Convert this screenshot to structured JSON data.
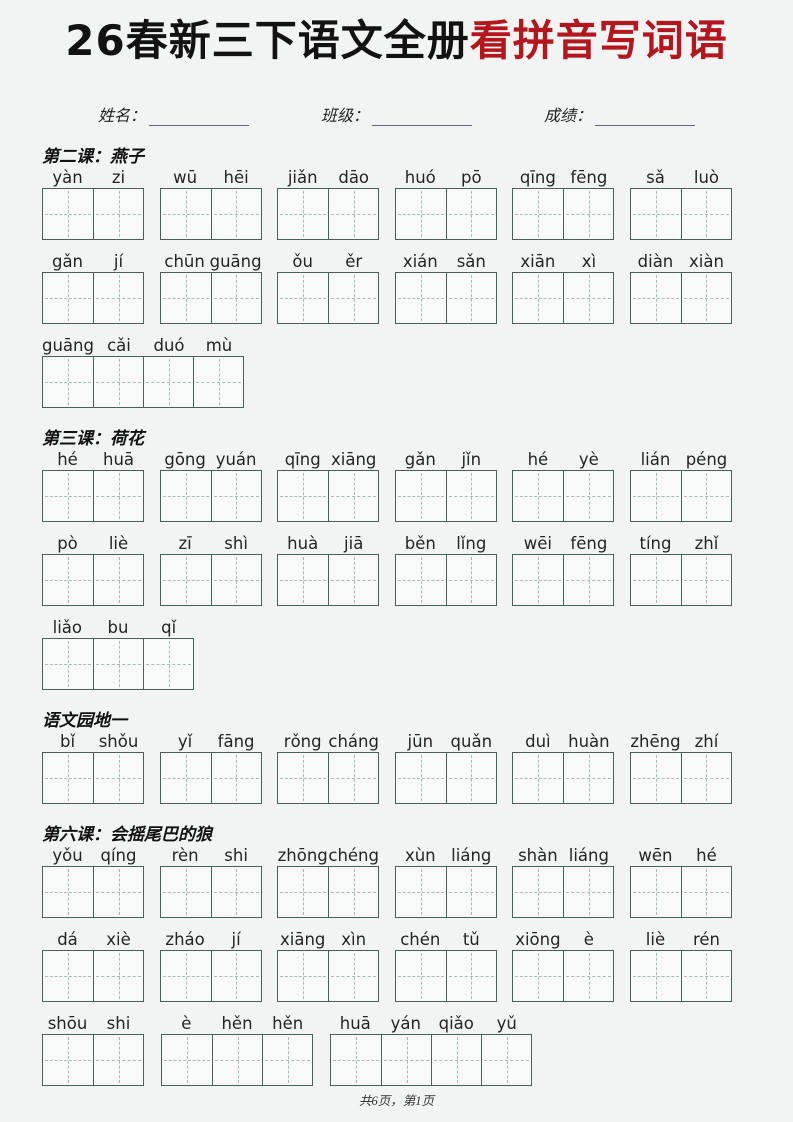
{
  "header": {
    "title_black": "26春新三下语文全册",
    "title_red": "看拼音写词语"
  },
  "student_fields": [
    {
      "label": "姓名："
    },
    {
      "label": "班级："
    },
    {
      "label": "成绩："
    }
  ],
  "sections": [
    {
      "heading": "第二课：燕子",
      "rows": [
        {
          "groups": [
            [
              "yàn",
              "zi"
            ],
            [
              "wū",
              "hēi"
            ],
            [
              "jiǎn",
              "dāo"
            ],
            [
              "huó",
              "pō"
            ],
            [
              "qīng",
              "fēng"
            ],
            [
              "sǎ",
              "luò"
            ]
          ]
        },
        {
          "groups": [
            [
              "gǎn",
              "jí"
            ],
            [
              "chūn",
              "guāng"
            ],
            [
              "ǒu",
              "ěr"
            ],
            [
              "xián",
              "sǎn"
            ],
            [
              "xiān",
              "xì"
            ],
            [
              "diàn",
              "xiàn"
            ]
          ]
        },
        {
          "groups": [
            [
              "guāng",
              "cǎi",
              "duó",
              "mù"
            ]
          ]
        }
      ]
    },
    {
      "heading": "第三课：荷花",
      "rows": [
        {
          "groups": [
            [
              "hé",
              "huā"
            ],
            [
              "gōng",
              "yuán"
            ],
            [
              "qīng",
              "xiāng"
            ],
            [
              "gǎn",
              "jǐn"
            ],
            [
              "hé",
              "yè"
            ],
            [
              "lián",
              "péng"
            ]
          ]
        },
        {
          "groups": [
            [
              "pò",
              "liè"
            ],
            [
              "zī",
              "shì"
            ],
            [
              "huà",
              "jiā"
            ],
            [
              "běn",
              "lǐng"
            ],
            [
              "wēi",
              "fēng"
            ],
            [
              "tíng",
              "zhǐ"
            ]
          ]
        },
        {
          "groups": [
            [
              "liǎo",
              "bu",
              "qǐ"
            ]
          ]
        }
      ]
    },
    {
      "heading": "语文园地一",
      "rows": [
        {
          "groups": [
            [
              "bǐ",
              "shǒu"
            ],
            [
              "yǐ",
              "fāng"
            ],
            [
              "rǒng",
              "cháng"
            ],
            [
              "jūn",
              "quǎn"
            ],
            [
              "duì",
              "huàn"
            ],
            [
              "zhēng",
              "zhí"
            ]
          ]
        }
      ]
    },
    {
      "heading": "第六课：会摇尾巴的狼",
      "rows": [
        {
          "groups": [
            [
              "yǒu",
              "qíng"
            ],
            [
              "rèn",
              "shi"
            ],
            [
              "zhōng",
              "chéng"
            ],
            [
              "xùn",
              "liáng"
            ],
            [
              "shàn",
              "liáng"
            ],
            [
              "wēn",
              "hé"
            ]
          ]
        },
        {
          "groups": [
            [
              "dá",
              "xiè"
            ],
            [
              "zháo",
              "jí"
            ],
            [
              "xiāng",
              "xìn"
            ],
            [
              "chén",
              "tǔ"
            ],
            [
              "xiōng",
              "è"
            ],
            [
              "liè",
              "rén"
            ]
          ]
        },
        {
          "groups": [
            [
              "shōu",
              "shi"
            ],
            [
              "è",
              "hěn",
              "hěn"
            ],
            [
              "huā",
              "yán",
              "qiǎo",
              "yǔ"
            ]
          ]
        }
      ]
    }
  ],
  "footer": {
    "page_info": "共6页，第1页"
  },
  "colors": {
    "title_red": "#b5151c",
    "grid_border": "#46615a",
    "grid_dash": "#a7bcb5",
    "page_bg": "#f1f4f2"
  }
}
